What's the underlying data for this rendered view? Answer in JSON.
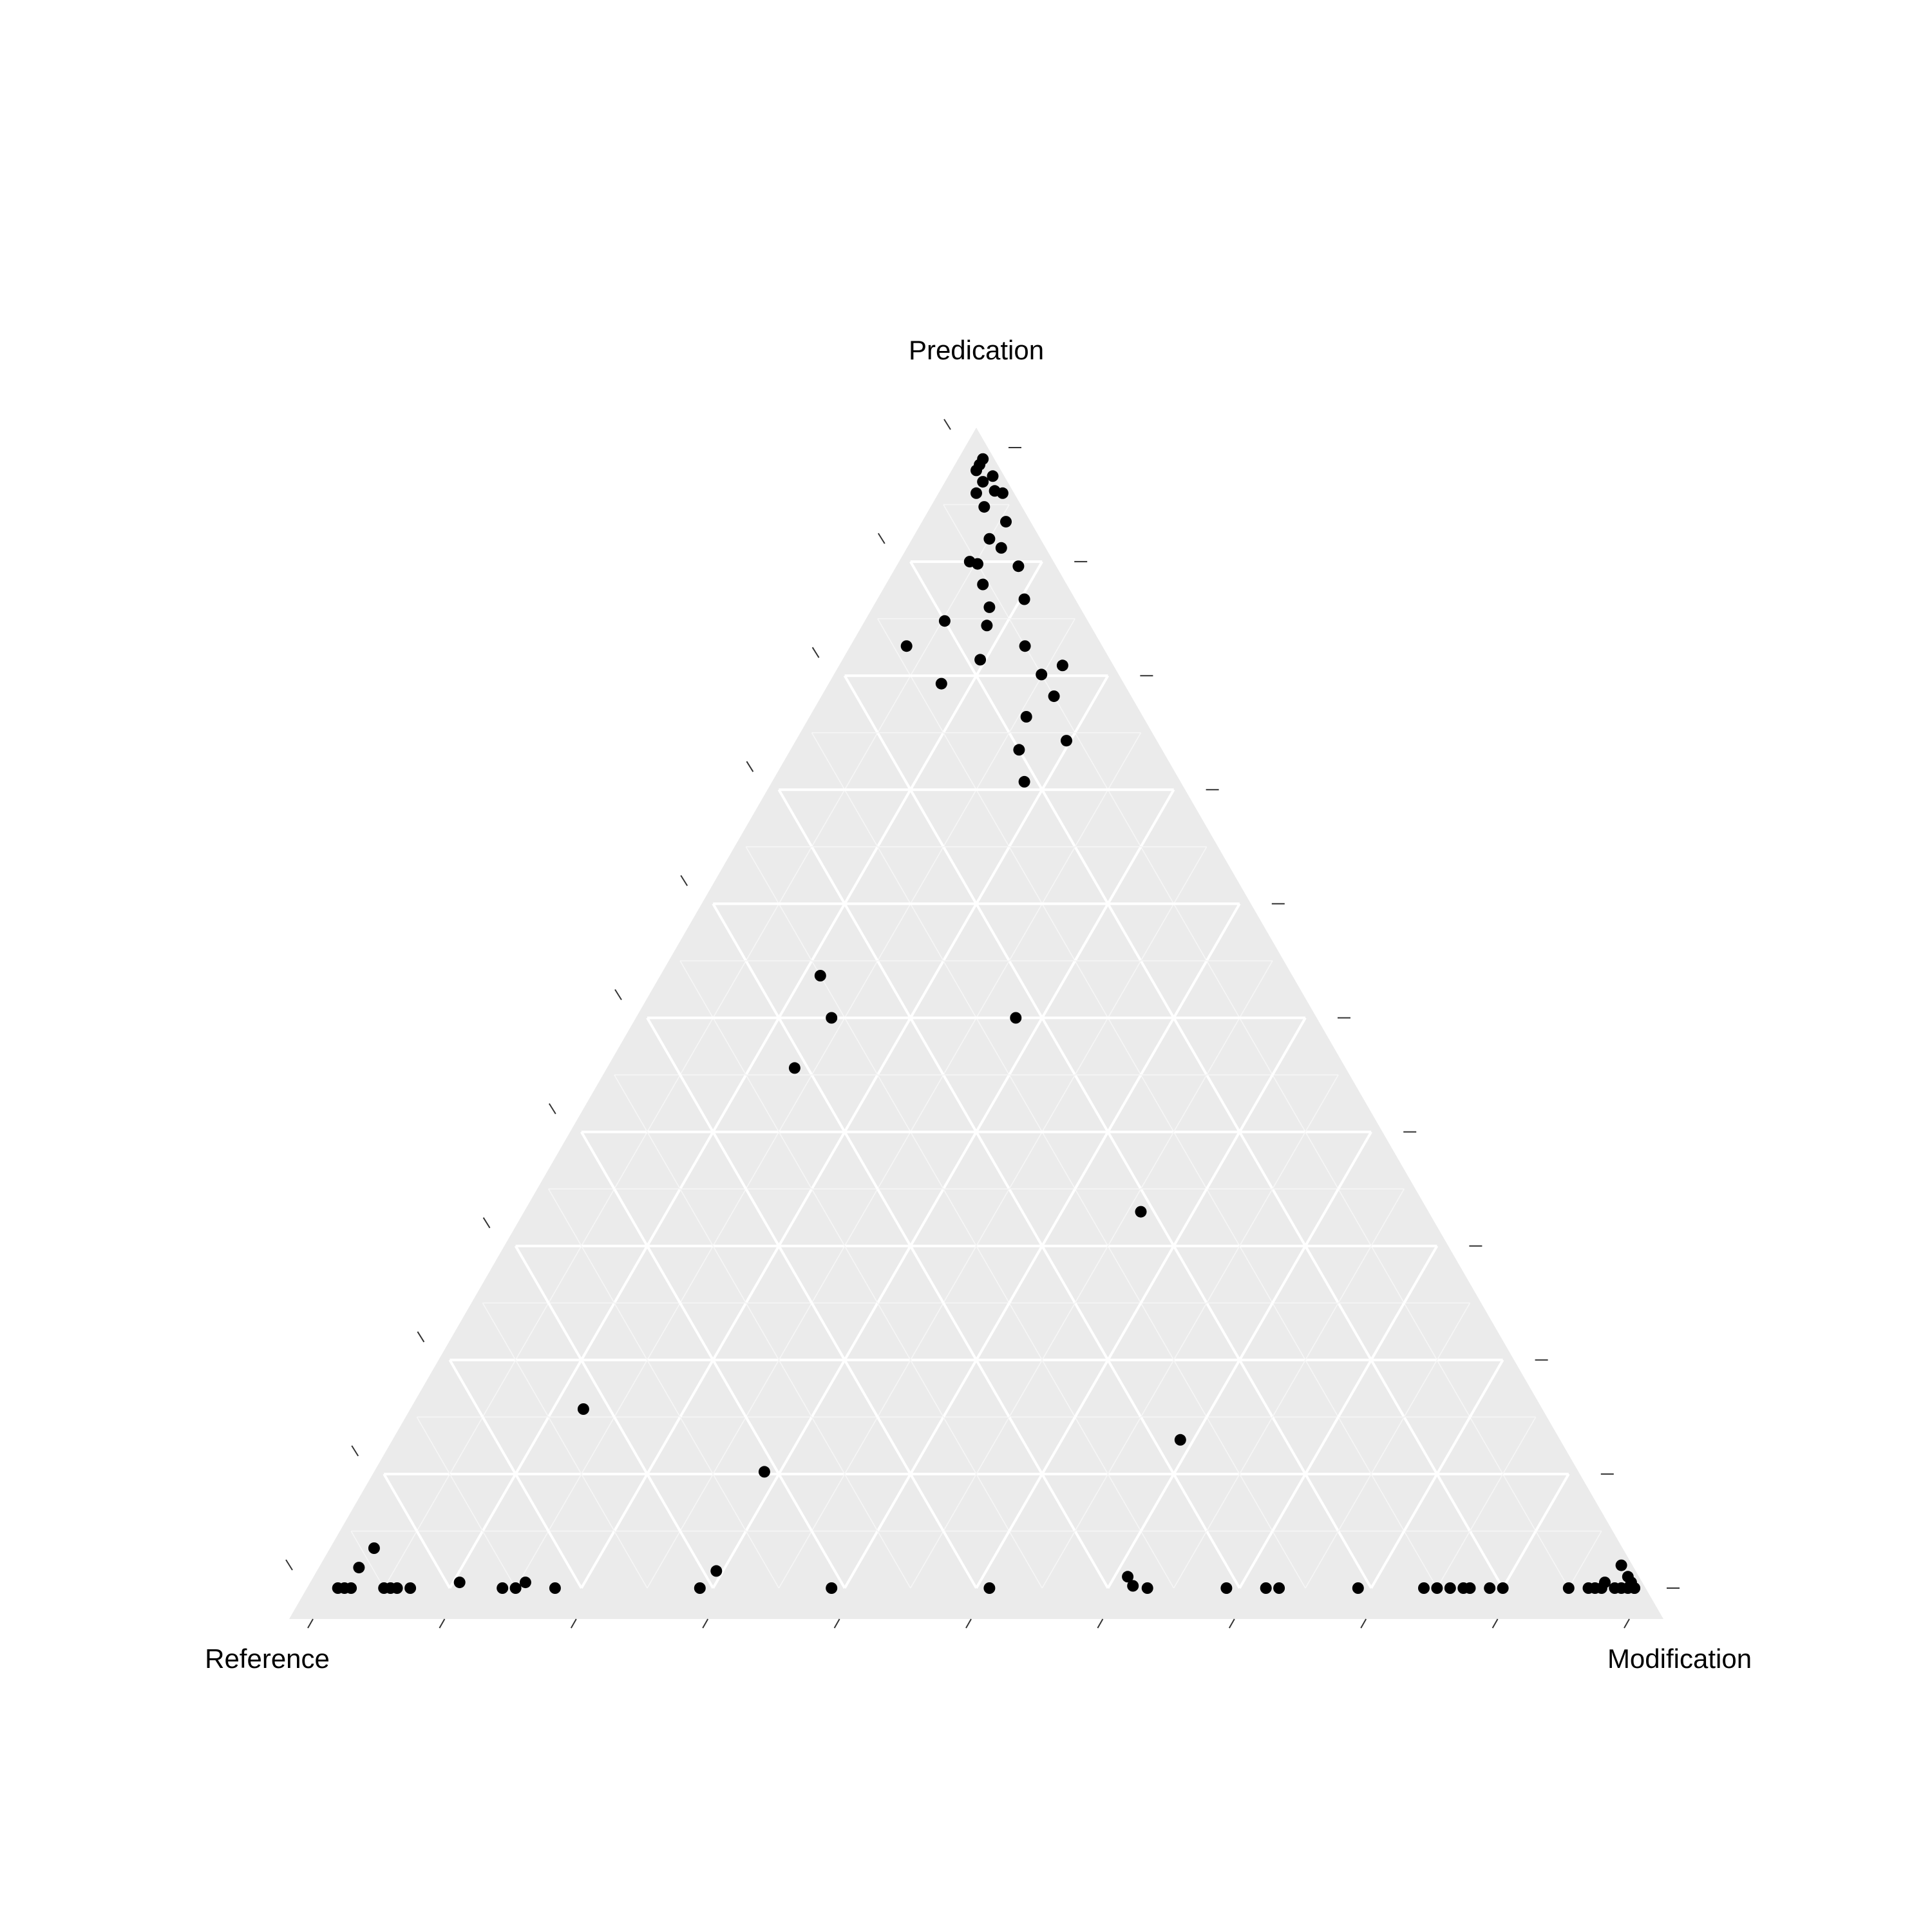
{
  "chart_data": {
    "type": "scatter",
    "subtype": "ternary",
    "axes": {
      "top": "Predication",
      "left": "Reference",
      "right": "Modification"
    },
    "scale": [
      0,
      1
    ],
    "grid": true,
    "gridlines": [
      0.1,
      0.2,
      0.3,
      0.4,
      0.5,
      0.6,
      0.7,
      0.8,
      0.9
    ],
    "legend": "none",
    "colors": {
      "panel": "#ebebeb",
      "grid": "#ffffff",
      "point": "#000000",
      "tick": "#333333"
    },
    "points": [
      [
        0.0,
        0.99,
        0.01
      ],
      [
        0.005,
        0.985,
        0.01
      ],
      [
        0.01,
        0.98,
        0.01
      ],
      [
        0.0,
        0.975,
        0.025
      ],
      [
        0.01,
        0.97,
        0.02
      ],
      [
        0.005,
        0.962,
        0.033
      ],
      [
        0.02,
        0.96,
        0.02
      ],
      [
        0.0,
        0.96,
        0.04
      ],
      [
        0.02,
        0.948,
        0.032
      ],
      [
        0.03,
        0.92,
        0.05
      ],
      [
        0.01,
        0.935,
        0.055
      ],
      [
        0.025,
        0.912,
        0.063
      ],
      [
        0.02,
        0.896,
        0.084
      ],
      [
        0.055,
        0.9,
        0.045
      ],
      [
        0.05,
        0.898,
        0.052
      ],
      [
        0.055,
        0.88,
        0.065
      ],
      [
        0.06,
        0.86,
        0.08
      ],
      [
        0.1,
        0.848,
        0.052
      ],
      [
        0.03,
        0.867,
        0.103
      ],
      [
        0.07,
        0.844,
        0.086
      ],
      [
        0.09,
        0.814,
        0.096
      ],
      [
        0.05,
        0.826,
        0.124
      ],
      [
        0.14,
        0.826,
        0.034
      ],
      [
        0.03,
        0.809,
        0.161
      ],
      [
        0.05,
        0.801,
        0.149
      ],
      [
        0.13,
        0.793,
        0.077
      ],
      [
        0.05,
        0.782,
        0.168
      ],
      [
        0.06,
        0.743,
        0.197
      ],
      [
        0.11,
        0.707,
        0.183
      ],
      [
        0.08,
        0.764,
        0.156
      ],
      [
        0.1,
        0.735,
        0.165
      ],
      [
        0.35,
        0.537,
        0.113
      ],
      [
        0.36,
        0.5,
        0.14
      ],
      [
        0.22,
        0.5,
        0.28
      ],
      [
        0.41,
        0.456,
        0.134
      ],
      [
        0.21,
        0.33,
        0.46
      ],
      [
        0.72,
        0.157,
        0.123
      ],
      [
        0.61,
        0.102,
        0.288
      ],
      [
        0.28,
        0.13,
        0.59
      ],
      [
        0.94,
        0.035,
        0.025
      ],
      [
        0.96,
        0.018,
        0.022
      ],
      [
        0.98,
        0.0,
        0.02
      ],
      [
        0.985,
        0.0,
        0.015
      ],
      [
        0.975,
        0.0,
        0.025
      ],
      [
        0.95,
        0.0,
        0.05
      ],
      [
        0.945,
        0.0,
        0.055
      ],
      [
        0.94,
        0.0,
        0.06
      ],
      [
        0.93,
        0.0,
        0.07
      ],
      [
        0.89,
        0.005,
        0.105
      ],
      [
        0.86,
        0.0,
        0.14
      ],
      [
        0.85,
        0.0,
        0.15
      ],
      [
        0.84,
        0.005,
        0.155
      ],
      [
        0.82,
        0.0,
        0.18
      ],
      [
        0.71,
        0.0,
        0.29
      ],
      [
        0.69,
        0.015,
        0.295
      ],
      [
        0.61,
        0.0,
        0.39
      ],
      [
        0.49,
        0.0,
        0.51
      ],
      [
        0.38,
        0.01,
        0.61
      ],
      [
        0.38,
        0.002,
        0.618
      ],
      [
        0.37,
        0.0,
        0.63
      ],
      [
        0.31,
        0.0,
        0.69
      ],
      [
        0.28,
        0.0,
        0.72
      ],
      [
        0.27,
        0.0,
        0.73
      ],
      [
        0.21,
        0.0,
        0.79
      ],
      [
        0.16,
        0.0,
        0.84
      ],
      [
        0.15,
        0.0,
        0.85
      ],
      [
        0.14,
        0.0,
        0.86
      ],
      [
        0.13,
        0.0,
        0.87
      ],
      [
        0.125,
        0.0,
        0.875
      ],
      [
        0.11,
        0.0,
        0.89
      ],
      [
        0.1,
        0.0,
        0.9
      ],
      [
        0.05,
        0.0,
        0.95
      ],
      [
        0.035,
        0.0,
        0.965
      ],
      [
        0.03,
        0.0,
        0.97
      ],
      [
        0.025,
        0.0,
        0.975
      ],
      [
        0.02,
        0.005,
        0.975
      ],
      [
        0.015,
        0.0,
        0.985
      ],
      [
        0.01,
        0.0,
        0.99
      ],
      [
        0.005,
        0.0,
        0.995
      ],
      [
        0.0,
        0.0,
        1.0
      ],
      [
        0.0,
        0.005,
        0.995
      ],
      [
        0.0,
        0.01,
        0.99
      ],
      [
        0.0,
        0.0,
        1.0
      ],
      [
        0.0,
        0.02,
        0.98
      ]
    ]
  }
}
